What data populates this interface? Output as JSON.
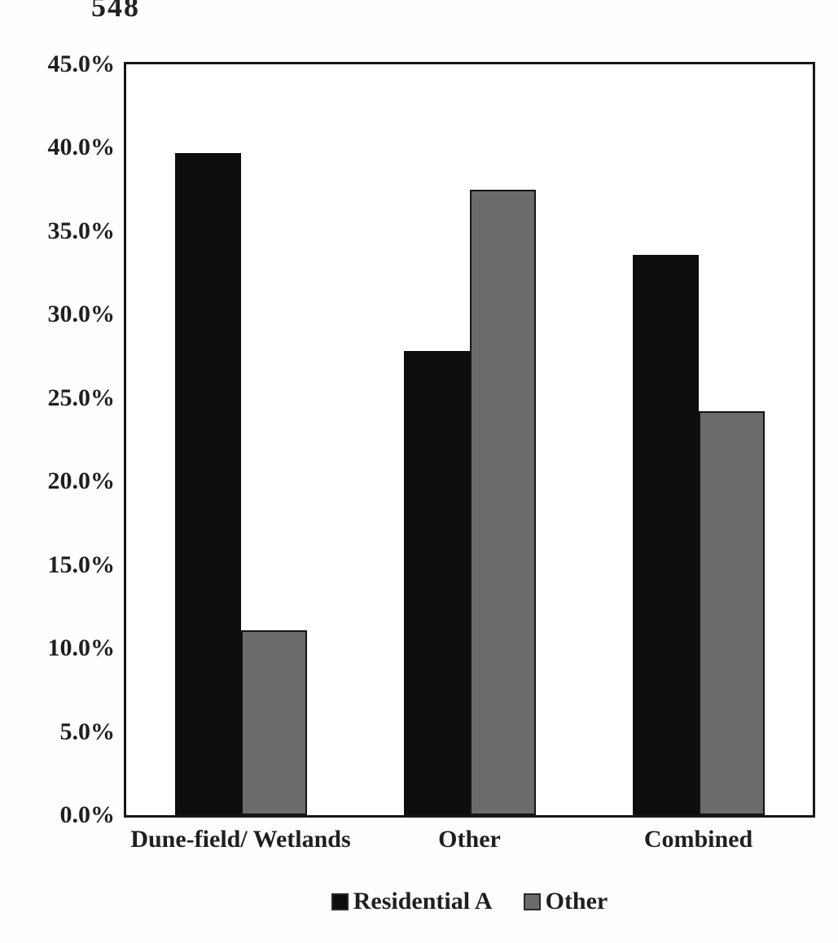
{
  "page_number": "548",
  "chart_data": {
    "type": "bar",
    "title": "",
    "xlabel": "",
    "ylabel": "",
    "categories": [
      "Dune-field/ Wetlands",
      "Other",
      "Combined"
    ],
    "series": [
      {
        "name": "Residential A",
        "color": "#0d0d0d",
        "values": [
          39.7,
          27.8,
          33.6
        ]
      },
      {
        "name": "Other",
        "color": "#6b6b6b",
        "values": [
          11.1,
          37.5,
          24.2
        ]
      }
    ],
    "ylim": [
      0,
      45
    ],
    "ytick_step": 5,
    "ytick_labels": [
      "45.0%",
      "40.0%",
      "35.0%",
      "30.0%",
      "25.0%",
      "20.0%",
      "15.0%",
      "10.0%",
      "5.0%",
      "0.0%"
    ],
    "grid": false,
    "legend_position": "bottom",
    "plot_border_color": "#161616"
  }
}
